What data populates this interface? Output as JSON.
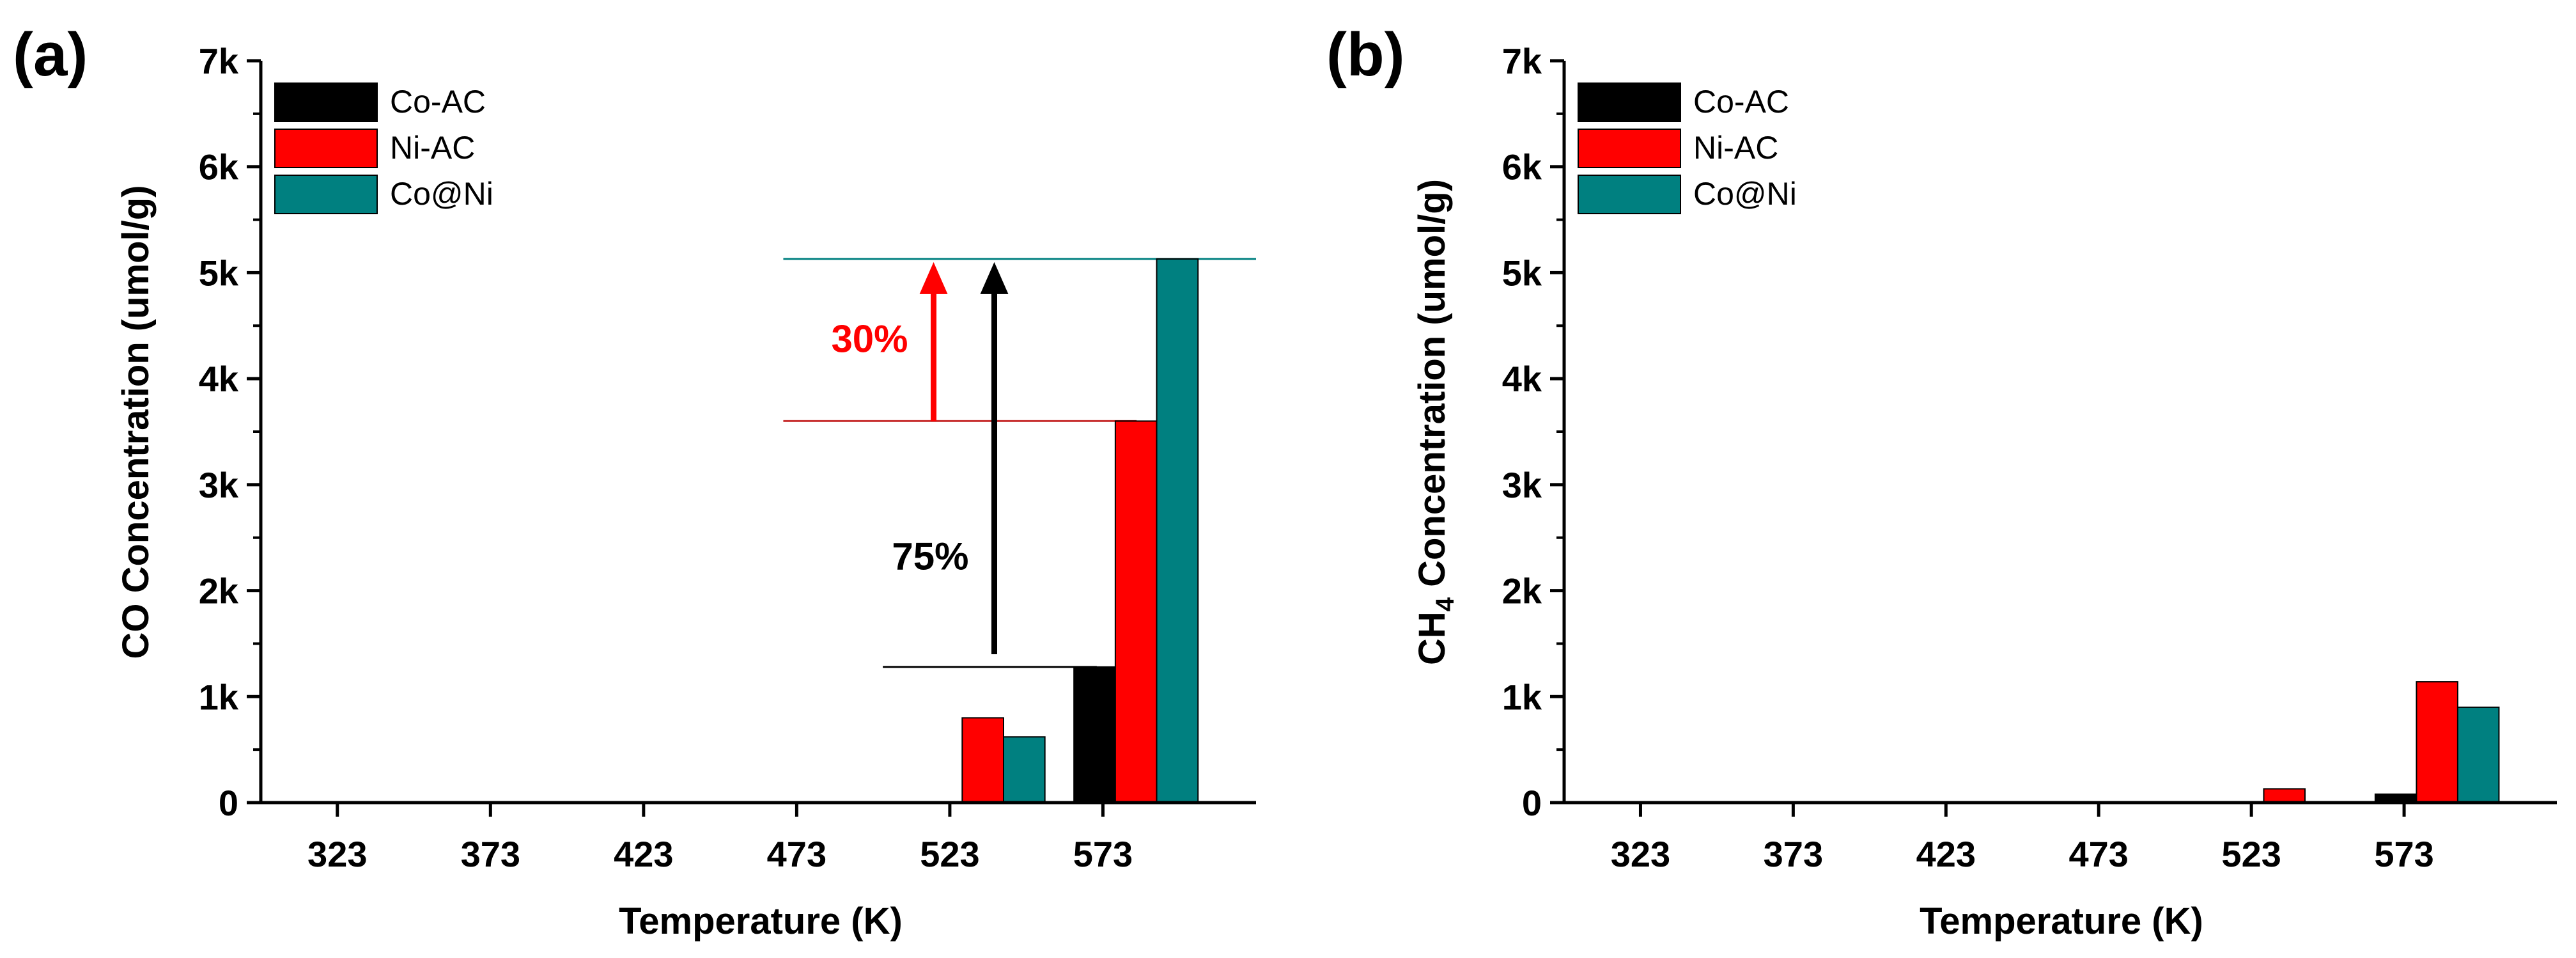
{
  "chart_data": [
    {
      "panel_label": "(a)",
      "type": "bar",
      "categories": [
        "323",
        "373",
        "423",
        "473",
        "523",
        "573"
      ],
      "series": [
        {
          "name": "Co-AC",
          "color": "#000000",
          "values": [
            0,
            0,
            0,
            0,
            0,
            1280
          ]
        },
        {
          "name": "Ni-AC",
          "color": "#ff0000",
          "values": [
            0,
            0,
            0,
            0,
            800,
            3600
          ]
        },
        {
          "name": "Co@Ni",
          "color": "#008080",
          "values": [
            0,
            0,
            0,
            0,
            620,
            5130
          ]
        }
      ],
      "xlabel": "Temperature (K)",
      "ylabel": "CO Concentration (umol/g)",
      "ylim": [
        0,
        7000
      ],
      "yticks": [
        0,
        1000,
        2000,
        3000,
        4000,
        5000,
        6000,
        7000
      ],
      "ytick_labels": [
        "0",
        "1k",
        "2k",
        "3k",
        "4k",
        "5k",
        "6k",
        "7k"
      ],
      "legend_position": "top-left",
      "annotations": [
        {
          "text": "30%",
          "color": "#ff0000",
          "from_value": 3600,
          "to_value": 5130
        },
        {
          "text": "75%",
          "color": "#000000",
          "from_value": 1280,
          "to_value": 5130
        }
      ]
    },
    {
      "panel_label": "(b)",
      "type": "bar",
      "categories": [
        "323",
        "373",
        "423",
        "473",
        "523",
        "573"
      ],
      "series": [
        {
          "name": "Co-AC",
          "color": "#000000",
          "values": [
            0,
            0,
            0,
            0,
            0,
            80
          ]
        },
        {
          "name": "Ni-AC",
          "color": "#ff0000",
          "values": [
            0,
            0,
            0,
            0,
            130,
            1140
          ]
        },
        {
          "name": "Co@Ni",
          "color": "#008080",
          "values": [
            0,
            0,
            0,
            0,
            0,
            900
          ]
        }
      ],
      "xlabel": "Temperature (K)",
      "ylabel_main": "CH",
      "ylabel_sub": "4",
      "ylabel_rest": " Concentration (umol/g)",
      "ylim": [
        0,
        7000
      ],
      "yticks": [
        0,
        1000,
        2000,
        3000,
        4000,
        5000,
        6000,
        7000
      ],
      "ytick_labels": [
        "0",
        "1k",
        "2k",
        "3k",
        "4k",
        "5k",
        "6k",
        "7k"
      ],
      "legend_position": "top-left",
      "annotations": []
    }
  ]
}
